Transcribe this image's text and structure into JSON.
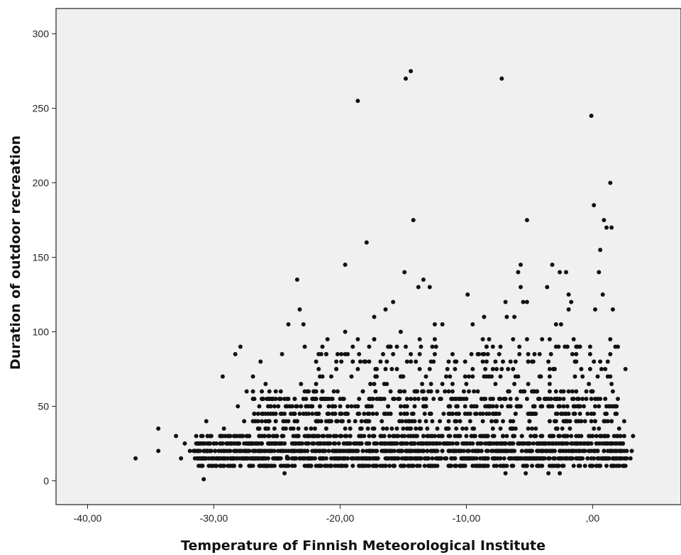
{
  "chart_data": {
    "type": "scatter",
    "xlabel": "Temperature of Finnish Meteorological Institute",
    "ylabel": "Duration of outdoor recreation",
    "xlim": [
      -42.5,
      7
    ],
    "ylim": [
      -16,
      317
    ],
    "x_ticks": [
      -40,
      -30,
      -20,
      -10,
      0
    ],
    "x_tick_labels": [
      "-40,00",
      "-30,00",
      "-20,00",
      "-10,00",
      ",00"
    ],
    "y_ticks": [
      0,
      50,
      100,
      150,
      200,
      250,
      300
    ],
    "y_tick_labels": [
      "0",
      "50",
      "100",
      "150",
      "200",
      "250",
      "300"
    ],
    "grid": false,
    "colors": {
      "plot_background": "#f0f0f0",
      "point": "#111111",
      "axis": "#222222"
    },
    "points": [
      [
        -36.2,
        15
      ],
      [
        -34.4,
        35
      ],
      [
        -34.4,
        20
      ],
      [
        -30.8,
        1
      ],
      [
        -24.4,
        5
      ],
      [
        -24.2,
        16
      ],
      [
        -18.6,
        255
      ],
      [
        -14.8,
        270
      ],
      [
        -14.4,
        275
      ],
      [
        -7.2,
        270
      ],
      [
        -0.1,
        245
      ],
      [
        1.4,
        200
      ],
      [
        0.1,
        185
      ],
      [
        -5.2,
        175
      ],
      [
        -14.2,
        175
      ],
      [
        0.9,
        175
      ],
      [
        1.1,
        170
      ],
      [
        1.5,
        170
      ],
      [
        -17.9,
        160
      ],
      [
        0.6,
        155
      ],
      [
        -19.6,
        145
      ],
      [
        -5.7,
        145
      ],
      [
        -3.2,
        145
      ],
      [
        -14.9,
        140
      ],
      [
        -5.9,
        140
      ],
      [
        -2.6,
        140
      ],
      [
        -2.1,
        140
      ],
      [
        0.5,
        140
      ],
      [
        -23.4,
        135
      ],
      [
        -13.4,
        135
      ],
      [
        -13.8,
        130
      ],
      [
        -12.9,
        130
      ],
      [
        -5.7,
        130
      ],
      [
        -3.6,
        130
      ],
      [
        -9.9,
        125
      ],
      [
        -1.9,
        125
      ],
      [
        0.8,
        125
      ],
      [
        -15.8,
        120
      ],
      [
        -6.9,
        120
      ],
      [
        -5.5,
        120
      ],
      [
        -5.2,
        120
      ],
      [
        -1.7,
        120
      ],
      [
        -16.4,
        115
      ],
      [
        -23.2,
        115
      ],
      [
        -1.9,
        115
      ],
      [
        0.2,
        115
      ],
      [
        1.6,
        115
      ],
      [
        -22.9,
        105
      ],
      [
        -24.1,
        105
      ],
      [
        -12.5,
        105
      ],
      [
        -11.9,
        105
      ],
      [
        -9.5,
        105
      ],
      [
        -2.9,
        105
      ],
      [
        -2.5,
        105
      ],
      [
        -19.6,
        100
      ],
      [
        -15.2,
        100
      ],
      [
        -6.8,
        110
      ],
      [
        -6.2,
        110
      ],
      [
        -17.3,
        110
      ],
      [
        -8.6,
        110
      ],
      [
        -1.5,
        95
      ],
      [
        1.4,
        95
      ],
      [
        -5.2,
        95
      ],
      [
        -18.6,
        95
      ],
      [
        -12.5,
        95
      ],
      [
        -28.3,
        85
      ],
      [
        -27.9,
        90
      ],
      [
        -26.3,
        80
      ],
      [
        -24.6,
        85
      ],
      [
        -22.8,
        90
      ],
      [
        -21.1,
        85
      ],
      [
        -18.0,
        80
      ],
      [
        -16.6,
        85
      ],
      [
        -9.0,
        85
      ],
      [
        -7.9,
        90
      ],
      [
        -4.2,
        85
      ],
      [
        -2.0,
        90
      ],
      [
        -0.2,
        85
      ],
      [
        0.6,
        80
      ],
      [
        1.4,
        85
      ],
      [
        2.6,
        75
      ],
      [
        -29.3,
        70
      ],
      [
        -26.9,
        70
      ],
      [
        -25.9,
        65
      ],
      [
        -23.1,
        65
      ],
      [
        -21.4,
        70
      ],
      [
        -19.1,
        70
      ],
      [
        -15.5,
        75
      ],
      [
        -13.2,
        70
      ],
      [
        -10.8,
        80
      ],
      [
        -6.7,
        75
      ],
      [
        -4.1,
        70
      ],
      [
        -0.9,
        75
      ],
      [
        -27.4,
        60
      ],
      [
        -25.3,
        55
      ],
      [
        -22.6,
        60
      ],
      [
        -20.2,
        60
      ],
      [
        -17.6,
        65
      ],
      [
        -14.1,
        60
      ],
      [
        -9.4,
        60
      ],
      [
        -7.7,
        65
      ],
      [
        -3.4,
        65
      ],
      [
        -0.1,
        60
      ],
      [
        -28.1,
        50
      ],
      [
        -26.1,
        45
      ],
      [
        -25.2,
        50
      ],
      [
        -20.6,
        50
      ],
      [
        -17.1,
        55
      ],
      [
        -12.6,
        55
      ],
      [
        -8.1,
        55
      ],
      [
        -4.7,
        60
      ],
      [
        -1.1,
        55
      ],
      [
        1.9,
        50
      ],
      [
        2.5,
        40
      ],
      [
        -30.6,
        40
      ],
      [
        -29.2,
        35
      ],
      [
        -27.6,
        40
      ],
      [
        -23.9,
        45
      ],
      [
        -19.4,
        45
      ],
      [
        -16.2,
        45
      ],
      [
        -12.9,
        45
      ],
      [
        -10.1,
        50
      ],
      [
        -6.1,
        45
      ],
      [
        -2.4,
        45
      ],
      [
        0.9,
        40
      ],
      [
        2.1,
        35
      ],
      [
        -33.0,
        30
      ],
      [
        -32.3,
        25
      ],
      [
        -31.6,
        20
      ],
      [
        -30.9,
        30
      ],
      [
        -29.5,
        25
      ],
      [
        -28.4,
        30
      ],
      [
        -26.4,
        35
      ],
      [
        -24.6,
        30
      ],
      [
        -22.7,
        35
      ],
      [
        -20.4,
        30
      ],
      [
        -18.3,
        35
      ],
      [
        -16.1,
        30
      ],
      [
        -14.0,
        35
      ],
      [
        -12.2,
        30
      ],
      [
        -10.3,
        35
      ],
      [
        -8.4,
        30
      ],
      [
        -6.5,
        35
      ],
      [
        -4.6,
        30
      ],
      [
        -2.8,
        35
      ],
      [
        -0.9,
        30
      ],
      [
        1.2,
        30
      ],
      [
        3.2,
        30
      ],
      [
        -32.6,
        15
      ],
      [
        -31.2,
        10
      ],
      [
        -30.1,
        15
      ],
      [
        -28.7,
        20
      ],
      [
        -27.1,
        15
      ],
      [
        -25.6,
        20
      ],
      [
        -23.8,
        25
      ],
      [
        -21.9,
        20
      ],
      [
        -20.1,
        25
      ],
      [
        -18.2,
        20
      ],
      [
        -16.4,
        25
      ],
      [
        -14.6,
        20
      ],
      [
        -12.7,
        25
      ],
      [
        -10.9,
        20
      ],
      [
        -9.1,
        25
      ],
      [
        -7.2,
        20
      ],
      [
        -5.4,
        25
      ],
      [
        -3.6,
        20
      ],
      [
        -1.7,
        25
      ],
      [
        0.4,
        20
      ],
      [
        2.3,
        20
      ],
      [
        3.1,
        20
      ],
      [
        -31.9,
        20
      ],
      [
        -29.8,
        10
      ],
      [
        -27.9,
        10
      ],
      [
        -26.0,
        10
      ],
      [
        -24.1,
        10
      ],
      [
        -22.3,
        10
      ],
      [
        -20.4,
        10
      ],
      [
        -18.5,
        10
      ],
      [
        -16.6,
        10
      ],
      [
        -14.2,
        10
      ],
      [
        -12.8,
        10
      ],
      [
        -10.9,
        10
      ],
      [
        -9.0,
        10
      ],
      [
        -7.1,
        10
      ],
      [
        -5.3,
        10
      ],
      [
        -3.4,
        10
      ],
      [
        -1.5,
        10
      ],
      [
        0.6,
        10
      ],
      [
        2.1,
        10
      ],
      [
        -30.4,
        25
      ],
      [
        -28.0,
        25
      ],
      [
        -25.0,
        15
      ],
      [
        -22.0,
        15
      ],
      [
        -19.0,
        15
      ],
      [
        -16.0,
        15
      ],
      [
        -13.0,
        15
      ],
      [
        -10.0,
        15
      ],
      [
        -7.0,
        15
      ],
      [
        -4.0,
        15
      ],
      [
        -1.0,
        15
      ],
      [
        1.0,
        15
      ],
      [
        3.0,
        15
      ],
      [
        -6.9,
        5
      ],
      [
        -5.3,
        5
      ],
      [
        -3.5,
        5
      ],
      [
        -2.6,
        5
      ]
    ],
    "dense_band": {
      "x_min": -31.5,
      "x_max": 2.8,
      "y_min": 10,
      "y_max": 30
    }
  }
}
